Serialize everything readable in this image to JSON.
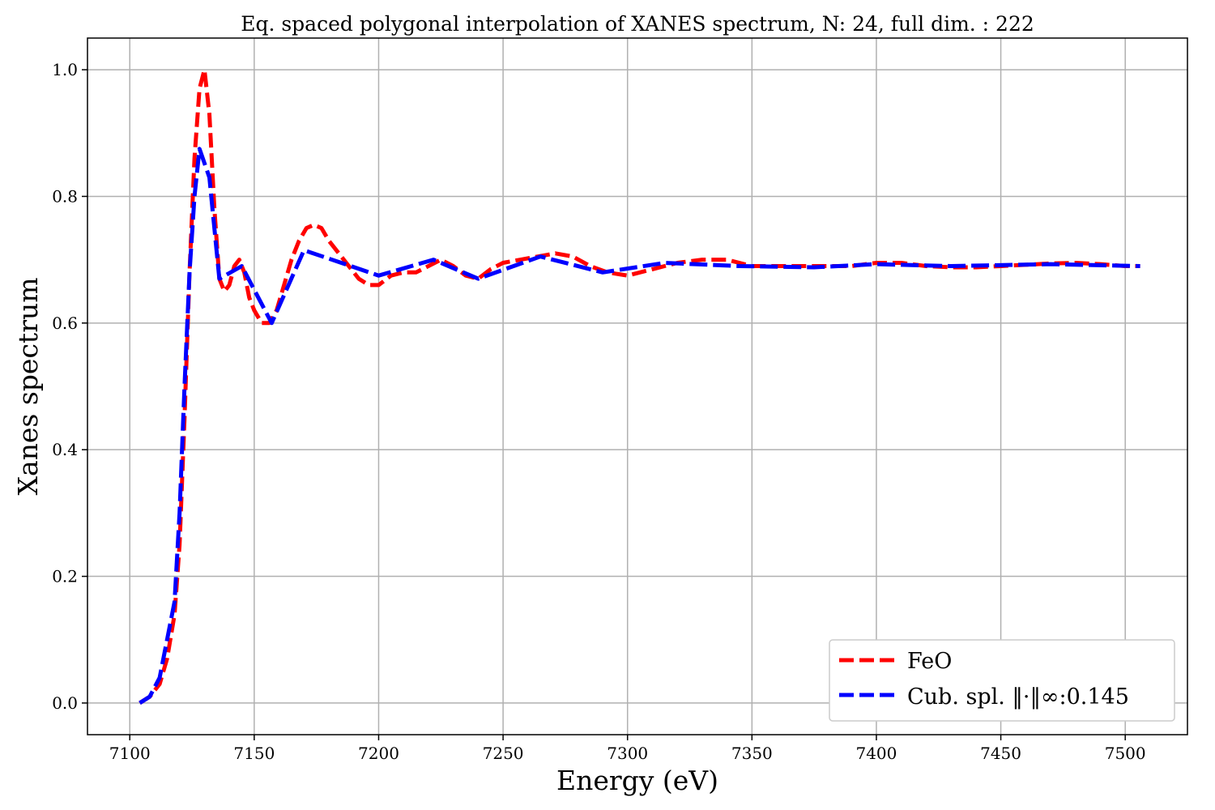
{
  "chart_data": {
    "type": "line",
    "title": "Eq. spaced polygonal interpolation of XANES spectrum, N: 24, full dim. : 222",
    "xlabel": "Energy (eV)",
    "ylabel": "Xanes spectrum",
    "xlim": [
      7083,
      7525
    ],
    "ylim": [
      -0.05,
      1.05
    ],
    "xticks": [
      7100,
      7150,
      7200,
      7250,
      7300,
      7350,
      7400,
      7450,
      7500
    ],
    "yticks": [
      0.0,
      0.2,
      0.4,
      0.6,
      0.8,
      1.0
    ],
    "xtick_labels": [
      "7100",
      "7150",
      "7200",
      "7250",
      "7300",
      "7350",
      "7400",
      "7450",
      "7500"
    ],
    "ytick_labels": [
      "0.0",
      "0.2",
      "0.4",
      "0.6",
      "0.8",
      "1.0"
    ],
    "grid": true,
    "legend_position": "lower-right",
    "series": [
      {
        "name": "FeO",
        "color": "#ff0000",
        "dash": "long-dash",
        "x": [
          7104,
          7108,
          7112,
          7115,
          7118,
          7120,
          7122,
          7124,
          7126,
          7128,
          7130,
          7132,
          7134,
          7136,
          7138,
          7140,
          7142,
          7144,
          7146,
          7148,
          7150,
          7153,
          7156,
          7159,
          7162,
          7165,
          7168,
          7171,
          7174,
          7177,
          7180,
          7184,
          7188,
          7192,
          7196,
          7200,
          7205,
          7210,
          7215,
          7220,
          7225,
          7230,
          7235,
          7240,
          7245,
          7250,
          7257,
          7264,
          7271,
          7278,
          7285,
          7292,
          7300,
          7310,
          7320,
          7330,
          7340,
          7350,
          7360,
          7370,
          7380,
          7390,
          7400,
          7410,
          7420,
          7430,
          7440,
          7450,
          7460,
          7470,
          7480,
          7490,
          7500,
          7506
        ],
        "y": [
          0.0,
          0.01,
          0.03,
          0.07,
          0.14,
          0.25,
          0.45,
          0.68,
          0.86,
          0.97,
          1.0,
          0.93,
          0.78,
          0.67,
          0.65,
          0.66,
          0.69,
          0.7,
          0.68,
          0.64,
          0.62,
          0.6,
          0.6,
          0.62,
          0.66,
          0.7,
          0.73,
          0.75,
          0.755,
          0.75,
          0.73,
          0.71,
          0.69,
          0.67,
          0.66,
          0.66,
          0.675,
          0.68,
          0.68,
          0.69,
          0.7,
          0.69,
          0.675,
          0.67,
          0.685,
          0.695,
          0.7,
          0.705,
          0.71,
          0.705,
          0.69,
          0.68,
          0.675,
          0.685,
          0.695,
          0.7,
          0.7,
          0.69,
          0.69,
          0.69,
          0.69,
          0.69,
          0.695,
          0.695,
          0.69,
          0.688,
          0.688,
          0.69,
          0.692,
          0.694,
          0.695,
          0.693,
          0.69,
          0.69
        ]
      },
      {
        "name": "Cub. spl. ‖·‖∞:0.145",
        "color": "#0000ff",
        "dash": "long-dash",
        "x": [
          7104,
          7108,
          7112,
          7115,
          7118,
          7120,
          7122,
          7124,
          7126,
          7128,
          7132,
          7136,
          7145,
          7157,
          7170,
          7185,
          7200,
          7222,
          7240,
          7265,
          7290,
          7315,
          7345,
          7375,
          7400,
          7430,
          7470,
          7506
        ],
        "y": [
          0.0,
          0.01,
          0.04,
          0.1,
          0.16,
          0.3,
          0.5,
          0.68,
          0.8,
          0.875,
          0.83,
          0.67,
          0.69,
          0.6,
          0.715,
          0.695,
          0.675,
          0.7,
          0.67,
          0.705,
          0.68,
          0.695,
          0.69,
          0.688,
          0.693,
          0.69,
          0.693,
          0.69
        ]
      }
    ]
  }
}
